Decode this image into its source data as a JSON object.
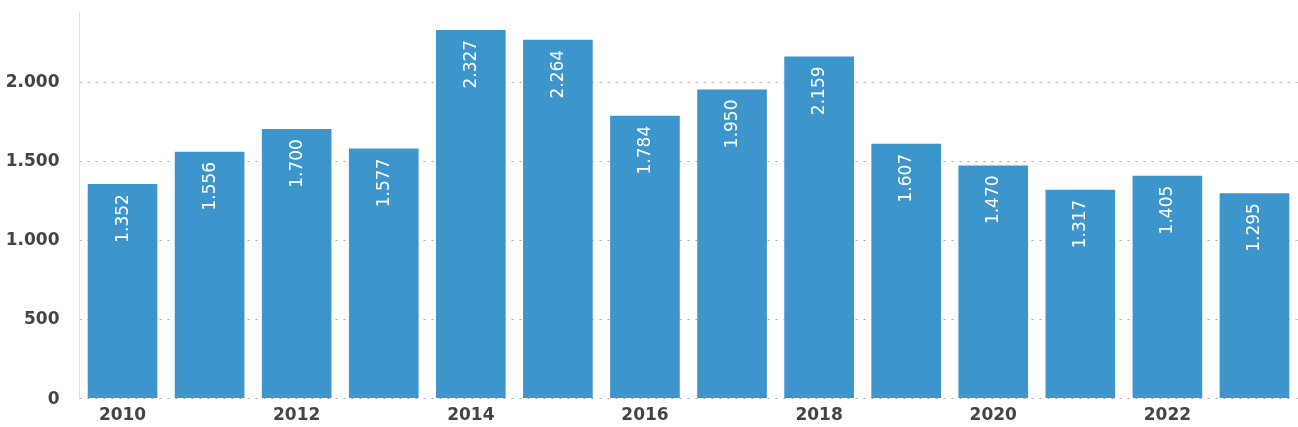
{
  "chart_data": {
    "type": "bar",
    "categories": [
      "2010",
      null,
      "2012",
      null,
      "2014",
      null,
      "2016",
      null,
      "2018",
      null,
      "2020",
      null,
      "2022",
      null
    ],
    "values": [
      1352,
      1556,
      1700,
      1577,
      2327,
      2264,
      1784,
      1950,
      2159,
      1607,
      1470,
      1317,
      1405,
      1295
    ],
    "value_labels": [
      "1.352",
      "1.556",
      "1.700",
      "1.577",
      "2.327",
      "2.264",
      "1.784",
      "1.950",
      "2.159",
      "1.607",
      "1.470",
      "1.317",
      "1.405",
      "1.295"
    ],
    "color": "#3d96cb",
    "ylim": [
      0,
      2440
    ],
    "yticks": [
      0,
      {
        "value": 500,
        "label": "500"
      },
      {
        "value": 1000,
        "label": "1.000"
      },
      {
        "value": 1500,
        "label": "1.500"
      },
      {
        "value": 2000,
        "label": "2.000"
      }
    ],
    "grid": "y"
  }
}
